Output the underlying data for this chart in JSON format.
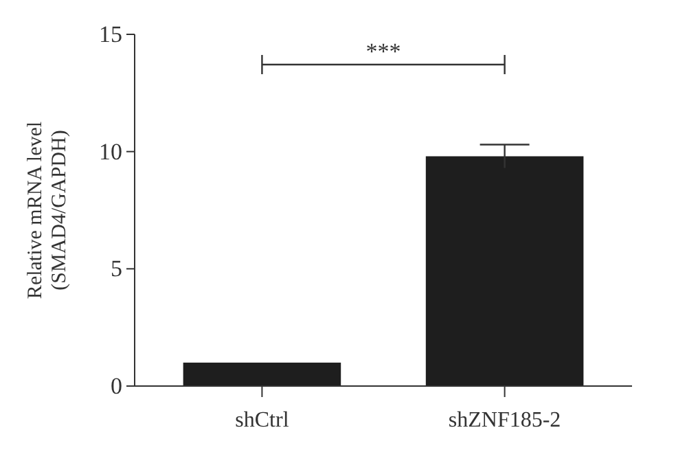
{
  "chart_data": {
    "type": "bar",
    "ylabel": "Relative mRNA level\n(SMAD4/GAPDH)",
    "categories": [
      "shCtrl",
      "shZNF185-2"
    ],
    "values": [
      1.0,
      9.8
    ],
    "errors": [
      null,
      0.5
    ],
    "color": "#1e1e1e",
    "ylim": [
      0,
      15
    ],
    "yticks": [
      0,
      5,
      10,
      15
    ],
    "annotations": [
      "***"
    ]
  }
}
